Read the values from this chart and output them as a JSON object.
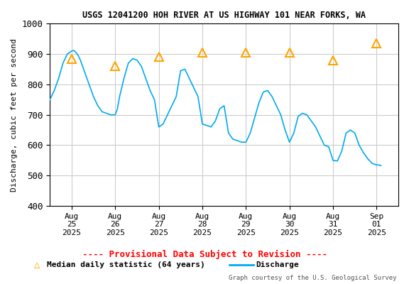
{
  "title": "USGS 12041200 HOH RIVER AT US HIGHWAY 101 NEAR FORKS, WA",
  "ylabel": "Discharge, cubic feet per second",
  "xlabel_ticks": [
    "Aug\n25\n2025",
    "Aug\n26\n2025",
    "Aug\n27\n2025",
    "Aug\n28\n2025",
    "Aug\n29\n2025",
    "Aug\n30\n2025",
    "Aug\n31\n2025",
    "Sep\n01\n2025"
  ],
  "ylim": [
    400,
    1000
  ],
  "yticks": [
    400,
    500,
    600,
    700,
    800,
    900,
    1000
  ],
  "xlim_days": [
    24.5,
    32.5
  ],
  "xtick_positions": [
    25,
    26,
    27,
    28,
    29,
    30,
    31,
    32
  ],
  "provisional_text": "---- Provisional Data Subject to Revision ----",
  "legend_text1": "Median daily statistic (64 years)",
  "legend_text2": "Discharge",
  "credit_text": "Graph courtesy of the U.S. Geological Survey",
  "discharge_color": "#00aaee",
  "median_color": "#ffa500",
  "provisional_color": "#ff0000",
  "background_color": "#ffffff",
  "plot_bg_color": "#ffffff",
  "grid_color": "#cccccc",
  "discharge_x": [
    24.5,
    24.6,
    24.7,
    24.8,
    24.9,
    25.0,
    25.05,
    25.1,
    25.15,
    25.2,
    25.3,
    25.4,
    25.5,
    25.6,
    25.7,
    25.8,
    25.9,
    26.0,
    26.05,
    26.1,
    26.2,
    26.3,
    26.4,
    26.5,
    26.6,
    26.7,
    26.8,
    26.9,
    27.0,
    27.1,
    27.2,
    27.3,
    27.4,
    27.5,
    27.6,
    27.7,
    27.8,
    27.9,
    28.0,
    28.1,
    28.2,
    28.3,
    28.4,
    28.5,
    28.6,
    28.7,
    28.8,
    28.9,
    29.0,
    29.1,
    29.2,
    29.3,
    29.4,
    29.5,
    29.6,
    29.7,
    29.8,
    29.9,
    30.0,
    30.1,
    30.2,
    30.3,
    30.4,
    30.5,
    30.6,
    30.7,
    30.8,
    30.9,
    31.0,
    31.1,
    31.2,
    31.3,
    31.4,
    31.5,
    31.6,
    31.7,
    31.8,
    31.9,
    32.0,
    32.05,
    32.1
  ],
  "discharge_y": [
    750,
    780,
    820,
    870,
    900,
    910,
    912,
    905,
    895,
    880,
    840,
    800,
    760,
    730,
    710,
    705,
    700,
    700,
    720,
    760,
    820,
    870,
    885,
    880,
    860,
    820,
    780,
    750,
    660,
    670,
    700,
    730,
    760,
    845,
    850,
    820,
    790,
    760,
    670,
    665,
    660,
    680,
    720,
    730,
    640,
    620,
    615,
    610,
    610,
    640,
    690,
    740,
    775,
    780,
    760,
    730,
    700,
    650,
    610,
    640,
    695,
    705,
    700,
    680,
    660,
    630,
    600,
    595,
    550,
    548,
    580,
    640,
    650,
    640,
    600,
    575,
    555,
    540,
    535,
    535,
    533
  ],
  "median_x": [
    25,
    26,
    27,
    28,
    29,
    30,
    31,
    32
  ],
  "median_y": [
    885,
    860,
    890,
    905,
    905,
    905,
    880,
    935
  ]
}
